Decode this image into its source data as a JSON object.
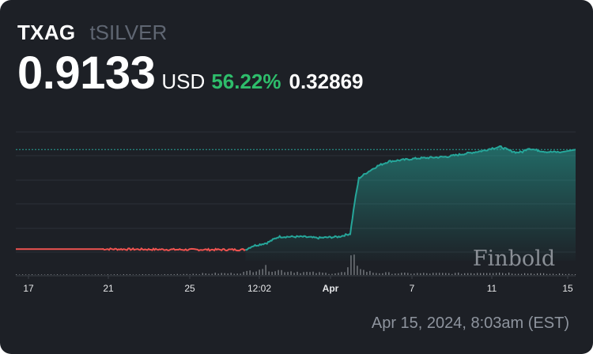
{
  "header": {
    "symbol": "TXAG",
    "name": "tSILVER",
    "price": "0.9133",
    "currency": "USD",
    "change_percent": "56.22%",
    "change_absolute": "0.32869"
  },
  "timestamp": "Apr 15, 2024, 8:03am (EST)",
  "watermark": "Finbold",
  "colors": {
    "background": "#1d2026",
    "up_line": "#26a69a",
    "down_line": "#ef5350",
    "change_positive": "#2ebd6b",
    "grid": "#2c3038",
    "volume": "#a9adb3"
  },
  "chart_data": {
    "type": "line",
    "x_tick_labels": [
      "17",
      "21",
      "25",
      "12:02",
      "Apr",
      "7",
      "11",
      "15"
    ],
    "x_tick_label_bold": "Apr",
    "last_price": 0.9133,
    "price_points": [
      [
        0,
        0.59
      ],
      [
        6,
        0.59
      ],
      [
        12,
        0.588
      ],
      [
        16,
        0.588
      ],
      [
        16.5,
        0.6
      ],
      [
        17.5,
        0.61
      ],
      [
        18.3,
        0.63
      ],
      [
        20,
        0.63
      ],
      [
        21,
        0.626
      ],
      [
        22.5,
        0.63
      ],
      [
        23.3,
        0.64
      ],
      [
        23.6,
        0.74
      ],
      [
        23.9,
        0.82
      ],
      [
        24.5,
        0.84
      ],
      [
        25.2,
        0.86
      ],
      [
        26,
        0.875
      ],
      [
        28,
        0.885
      ],
      [
        30,
        0.89
      ],
      [
        31.3,
        0.9
      ],
      [
        32.6,
        0.91
      ],
      [
        33.2,
        0.918
      ],
      [
        33.8,
        0.922
      ],
      [
        34.4,
        0.91
      ],
      [
        34.9,
        0.904
      ],
      [
        35.3,
        0.906
      ],
      [
        35.7,
        0.918
      ],
      [
        36.2,
        0.912
      ],
      [
        37,
        0.906
      ],
      [
        38,
        0.905
      ],
      [
        39,
        0.9133
      ]
    ],
    "volume_bars": [
      [
        2,
        1
      ],
      [
        6,
        1
      ],
      [
        10,
        1
      ],
      [
        12,
        2
      ],
      [
        14,
        3
      ],
      [
        15,
        3
      ],
      [
        16,
        5
      ],
      [
        16.5,
        9
      ],
      [
        17,
        14
      ],
      [
        17.5,
        12
      ],
      [
        18,
        9
      ],
      [
        19,
        7
      ],
      [
        20,
        5
      ],
      [
        21,
        4
      ],
      [
        22,
        3
      ],
      [
        23,
        5
      ],
      [
        23.4,
        30
      ],
      [
        23.7,
        24
      ],
      [
        24.2,
        8
      ],
      [
        25,
        4
      ],
      [
        27,
        3
      ],
      [
        29,
        3
      ],
      [
        31,
        3
      ],
      [
        33,
        5
      ],
      [
        34,
        4
      ],
      [
        35,
        3
      ],
      [
        36,
        3
      ],
      [
        37,
        2
      ],
      [
        38,
        2
      ]
    ],
    "grid": true
  }
}
